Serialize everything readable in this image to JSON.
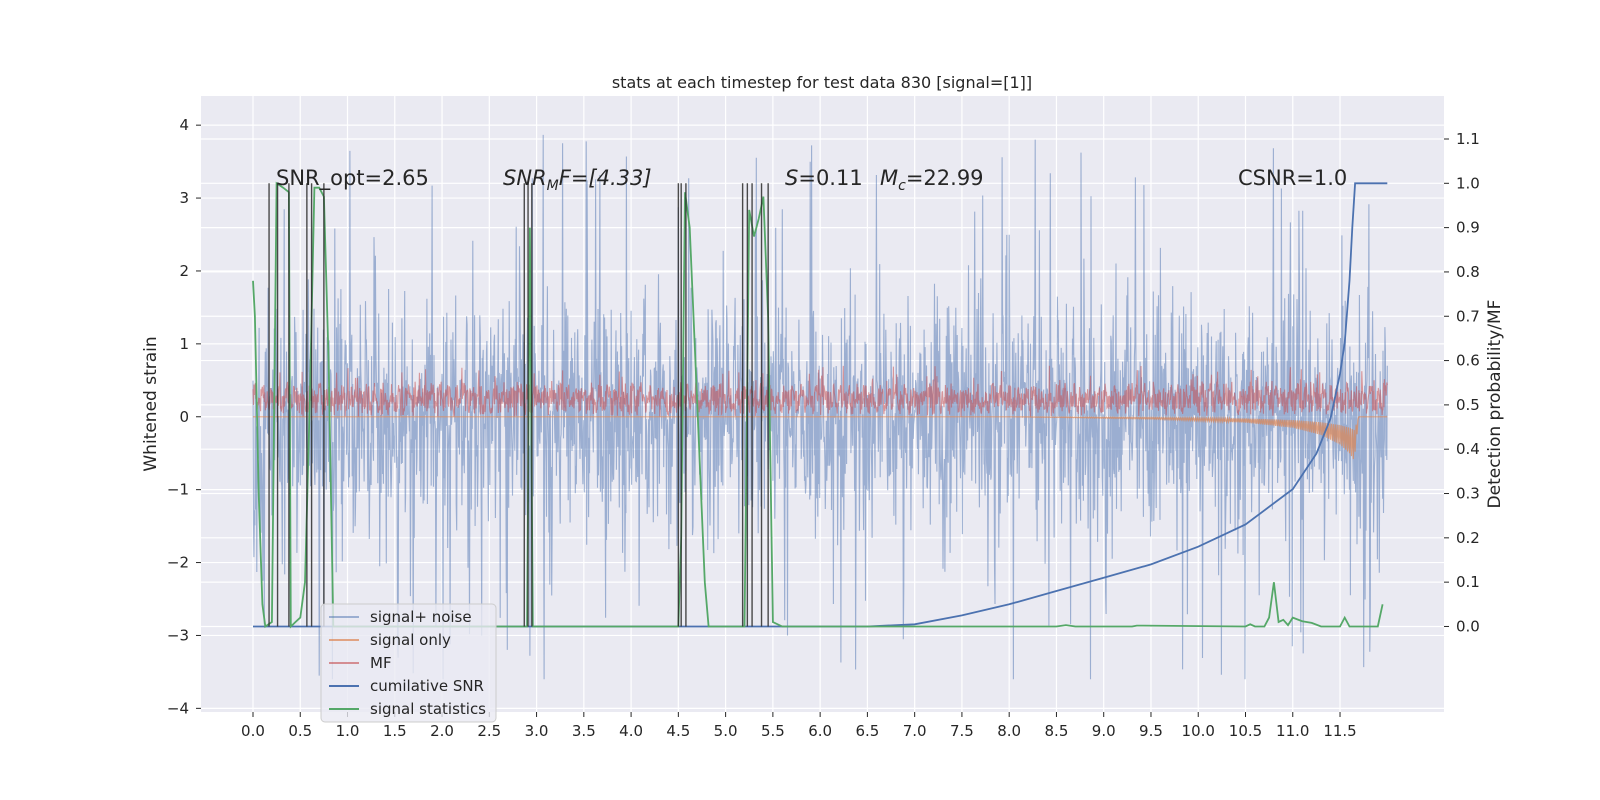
{
  "chart_data": {
    "type": "line",
    "title": "stats at each timestep for test data 830 [signal=[1]]",
    "xlabel": "",
    "ylabel": "Whitened strain",
    "y2label": "Detection probability/MF",
    "xlim": [
      -0.55,
      12.6
    ],
    "ylim": [
      -4.05,
      4.4
    ],
    "y2lim": [
      -0.193,
      1.197
    ],
    "x_ticks": [
      "0.0",
      "0.5",
      "1.0",
      "1.5",
      "2.0",
      "2.5",
      "3.0",
      "3.5",
      "4.0",
      "4.5",
      "5.0",
      "5.5",
      "6.0",
      "6.5",
      "7.0",
      "7.5",
      "8.0",
      "8.5",
      "9.0",
      "9.5",
      "10.0",
      "10.5",
      "11.0",
      "11.5"
    ],
    "y_ticks": [
      "4",
      "3",
      "2",
      "1",
      "0",
      "−1",
      "−2",
      "−3",
      "−4"
    ],
    "y2_ticks": [
      "1.1",
      "1.0",
      "0.9",
      "0.8",
      "0.7",
      "0.6",
      "0.5",
      "0.4",
      "0.3",
      "0.2",
      "0.1",
      "0.0"
    ],
    "grid": true,
    "legend_placement": "lower-left",
    "annotations": {
      "snr_opt": "SNR_opt=2.65",
      "snr_mf_prefix": "SNR",
      "snr_mf_sub": "M",
      "snr_mf_rest": "F=[4.33]",
      "s_sym": "S",
      "s_val": "=0.11",
      "mc_sym": "M",
      "mc_sub": "c",
      "mc_val": "=22.99",
      "csnr": "CSNR=1.0"
    },
    "series": [
      {
        "name": "signal+ noise",
        "axis": "left",
        "color": "#4c72b0",
        "style": "dense noise, approx. ±1.4 band with spikes to ±4",
        "amplitude": 1.0
      },
      {
        "name": "signal only",
        "axis": "left",
        "color": "#dd8452",
        "style": "near zero, chirp growing to −0.6 at 11.65",
        "points": [
          [
            0.0,
            0.0
          ],
          [
            4.0,
            0.0
          ],
          [
            8.0,
            0.0
          ],
          [
            9.5,
            -0.03
          ],
          [
            10.5,
            -0.08
          ],
          [
            11.0,
            -0.15
          ],
          [
            11.3,
            -0.25
          ],
          [
            11.5,
            -0.38
          ],
          [
            11.6,
            -0.5
          ],
          [
            11.65,
            -0.6
          ],
          [
            11.7,
            0.0
          ],
          [
            12.0,
            0.0
          ]
        ]
      },
      {
        "name": "MF",
        "axis": "left",
        "color": "#c44e52",
        "style": "positive noise band 0 to 0.6"
      },
      {
        "name": "cumilative SNR",
        "axis": "right",
        "color": "#4c72b0",
        "points": [
          [
            0.0,
            0.0
          ],
          [
            6.5,
            0.0
          ],
          [
            7.0,
            0.005
          ],
          [
            7.5,
            0.025
          ],
          [
            8.0,
            0.05
          ],
          [
            8.5,
            0.08
          ],
          [
            9.0,
            0.11
          ],
          [
            9.5,
            0.14
          ],
          [
            10.0,
            0.18
          ],
          [
            10.5,
            0.23
          ],
          [
            11.0,
            0.31
          ],
          [
            11.25,
            0.39
          ],
          [
            11.4,
            0.47
          ],
          [
            11.5,
            0.57
          ],
          [
            11.55,
            0.64
          ],
          [
            11.6,
            0.78
          ],
          [
            11.63,
            0.9
          ],
          [
            11.66,
            1.0
          ],
          [
            12.0,
            1.0
          ]
        ]
      },
      {
        "name": "signal statistics",
        "axis": "right",
        "color": "#55a868",
        "points": [
          [
            0.0,
            0.78
          ],
          [
            0.02,
            0.7
          ],
          [
            0.06,
            0.3
          ],
          [
            0.1,
            0.05
          ],
          [
            0.13,
            0.0
          ],
          [
            0.2,
            0.01
          ],
          [
            0.25,
            1.0
          ],
          [
            0.32,
            0.99
          ],
          [
            0.38,
            0.98
          ],
          [
            0.4,
            0.0
          ],
          [
            0.45,
            0.01
          ],
          [
            0.5,
            0.02
          ],
          [
            0.55,
            0.1
          ],
          [
            0.6,
            0.5
          ],
          [
            0.65,
            0.99
          ],
          [
            0.7,
            0.99
          ],
          [
            0.75,
            0.97
          ],
          [
            0.8,
            0.6
          ],
          [
            0.85,
            0.0
          ],
          [
            2.9,
            0.0
          ],
          [
            2.93,
            0.9
          ],
          [
            2.96,
            0.0
          ],
          [
            4.5,
            0.0
          ],
          [
            4.53,
            0.2
          ],
          [
            4.57,
            0.98
          ],
          [
            4.62,
            0.9
          ],
          [
            4.7,
            0.5
          ],
          [
            4.78,
            0.1
          ],
          [
            4.82,
            0.0
          ],
          [
            5.2,
            0.0
          ],
          [
            5.25,
            0.94
          ],
          [
            5.3,
            0.88
          ],
          [
            5.35,
            0.92
          ],
          [
            5.4,
            0.97
          ],
          [
            5.45,
            0.7
          ],
          [
            5.5,
            0.01
          ],
          [
            5.6,
            0.0
          ],
          [
            8.5,
            0.0
          ],
          [
            8.6,
            0.003
          ],
          [
            8.7,
            0.0
          ],
          [
            9.3,
            0.0
          ],
          [
            9.35,
            0.002
          ],
          [
            10.5,
            0.0
          ],
          [
            10.55,
            0.005
          ],
          [
            10.6,
            0.0
          ],
          [
            10.7,
            0.0
          ],
          [
            10.75,
            0.02
          ],
          [
            10.8,
            0.1
          ],
          [
            10.85,
            0.01
          ],
          [
            10.9,
            0.015
          ],
          [
            10.95,
            0.003
          ],
          [
            11.0,
            0.02
          ],
          [
            11.1,
            0.012
          ],
          [
            11.2,
            0.008
          ],
          [
            11.3,
            0.0
          ],
          [
            11.4,
            0.0
          ],
          [
            11.5,
            0.0
          ],
          [
            11.55,
            0.02
          ],
          [
            11.6,
            0.0
          ],
          [
            11.8,
            0.0
          ],
          [
            11.9,
            0.0
          ],
          [
            11.95,
            0.05
          ]
        ]
      }
    ],
    "vertical_markers": [
      0.17,
      0.26,
      0.38,
      0.57,
      0.62,
      0.75,
      2.87,
      2.91,
      2.95,
      4.5,
      4.53,
      4.58,
      5.18,
      5.23,
      5.28,
      5.38,
      5.45
    ]
  }
}
